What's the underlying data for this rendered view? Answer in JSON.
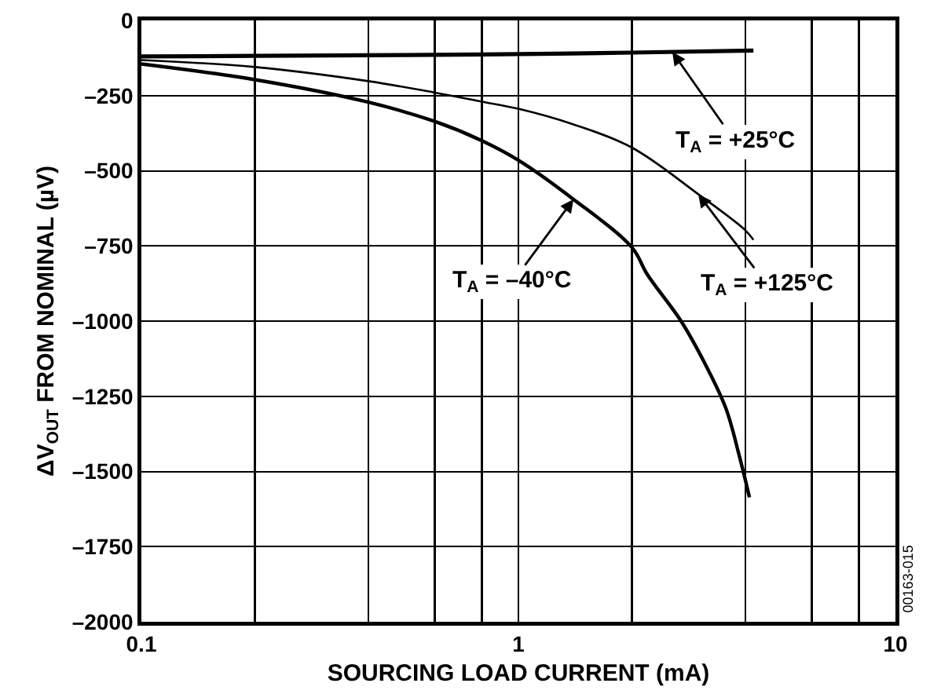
{
  "chart_data": {
    "type": "line",
    "xlabel": "SOURCING LOAD CURRENT (mA)",
    "ylabel": "ΔV$_{OUT}$ FROM NOMINAL (µV)",
    "log": "x",
    "grid": true,
    "marker": "none",
    "line_style": "solid",
    "xlim": [
      0.1,
      10
    ],
    "xticks": [
      0.1,
      {
        "value": 0.2,
        "label": null
      },
      {
        "value": 0.4,
        "label": null
      },
      {
        "value": 0.6,
        "label": null
      },
      {
        "value": 0.8,
        "label": null
      },
      1,
      {
        "value": 2,
        "label": null
      },
      {
        "value": 4,
        "label": null
      },
      {
        "value": 6,
        "label": null
      },
      {
        "value": 8,
        "label": null
      },
      10
    ],
    "ylim": [
      -2000,
      0
    ],
    "yticks": [
      0,
      {
        "value": -250,
        "label": "–250"
      },
      {
        "value": -500,
        "label": "–500"
      },
      {
        "value": -750,
        "label": "–750"
      },
      {
        "value": -1000,
        "label": "–1000"
      },
      {
        "value": -1250,
        "label": "–1250"
      },
      {
        "value": -1500,
        "label": "–1500"
      },
      {
        "value": -1750,
        "label": "–1750"
      },
      {
        "value": -2000,
        "label": "–2000"
      }
    ],
    "series": [
      {
        "color": "#000000",
        "x": [
          0.1,
          0.2,
          0.5,
          1,
          2,
          4.2
        ],
        "values": [
          -120,
          -118,
          -115,
          -112,
          -107,
          -100
        ]
      },
      {
        "color": "#000000",
        "x": [
          0.1,
          0.2,
          0.4,
          0.6,
          0.8,
          1,
          1.4,
          2,
          2.2,
          2.7,
          3.15,
          3.55,
          3.85,
          4.1
        ],
        "values": [
          -145,
          -197,
          -272,
          -336,
          -400,
          -465,
          -595,
          -755,
          -846,
          -1000,
          -1150,
          -1290,
          -1446,
          -1586
        ]
      },
      {
        "color": "#000000",
        "x": [
          0.1,
          0.2,
          0.4,
          0.6,
          0.8,
          1,
          1.4,
          2,
          3,
          4,
          4.2
        ],
        "values": [
          -132,
          -155,
          -202,
          -240,
          -270,
          -294,
          -346,
          -423,
          -578,
          -698,
          -730
        ]
      }
    ],
    "annotations": [
      {
        "text": "T$_{A}$ = +25°C",
        "x": 2.56,
        "y": -105
      },
      {
        "text": "T$_{A}$ = –40°C",
        "x": 1.4,
        "y": -595
      },
      {
        "text": "T$_{A}$ = +125°C",
        "x": 3,
        "y": -578
      },
      "00163-015"
    ]
  }
}
